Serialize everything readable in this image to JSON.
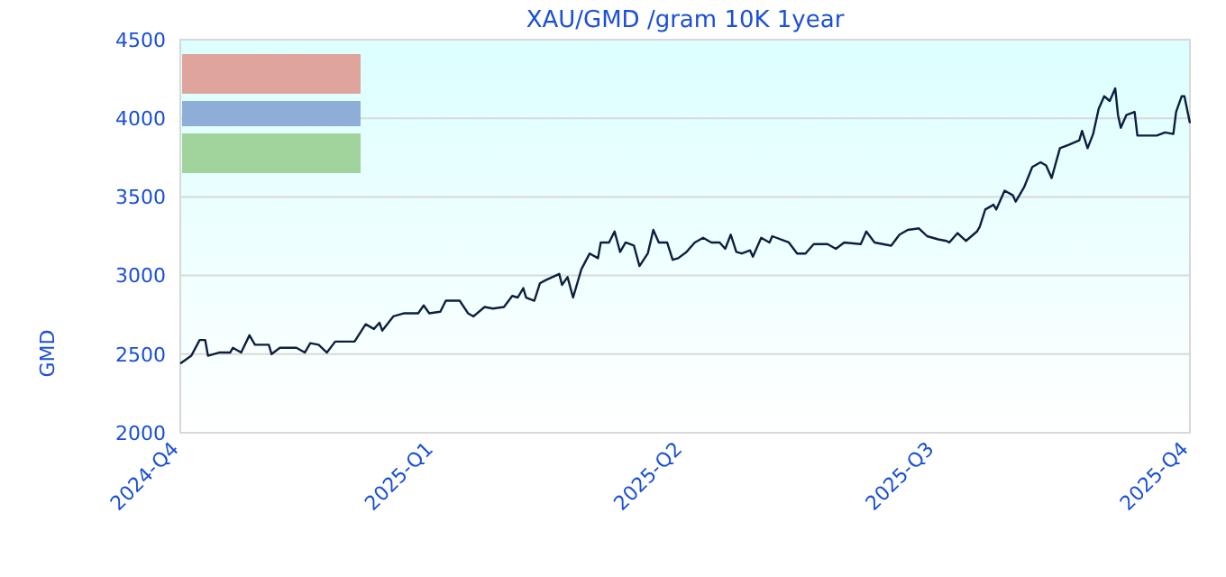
{
  "chart_data": {
    "type": "line",
    "title": "XAU/GMD /gram 10K 1year",
    "ylabel": "GMD",
    "x": [
      "2024-10-01",
      "2024-10-05",
      "2024-10-08",
      "2024-10-10",
      "2024-10-11",
      "2024-10-15",
      "2024-10-19",
      "2024-10-20",
      "2024-10-23",
      "2024-10-26",
      "2024-10-28",
      "2024-11-02",
      "2024-11-03",
      "2024-11-06",
      "2024-11-12",
      "2024-11-15",
      "2024-11-17",
      "2024-11-20",
      "2024-11-23",
      "2024-11-26",
      "2024-12-03",
      "2024-12-07",
      "2024-12-10",
      "2024-12-12",
      "2024-12-13",
      "2024-12-17",
      "2024-12-21",
      "2024-12-26",
      "2024-12-28",
      "2024-12-30",
      "2025-01-03",
      "2025-01-05",
      "2025-01-10",
      "2025-01-13",
      "2025-01-15",
      "2025-01-19",
      "2025-01-22",
      "2025-01-26",
      "2025-01-29",
      "2025-01-31",
      "2025-02-02",
      "2025-02-03",
      "2025-02-06",
      "2025-02-08",
      "2025-02-10",
      "2025-02-15",
      "2025-02-16",
      "2025-02-18",
      "2025-02-20",
      "2025-02-23",
      "2025-02-26",
      "2025-03-01",
      "2025-03-02",
      "2025-03-05",
      "2025-03-07",
      "2025-03-09",
      "2025-03-11",
      "2025-03-14",
      "2025-03-16",
      "2025-03-19",
      "2025-03-21",
      "2025-03-23",
      "2025-03-26",
      "2025-03-28",
      "2025-03-30",
      "2025-04-02",
      "2025-04-05",
      "2025-04-08",
      "2025-04-11",
      "2025-04-14",
      "2025-04-16",
      "2025-04-18",
      "2025-04-20",
      "2025-04-22",
      "2025-04-25",
      "2025-04-26",
      "2025-04-29",
      "2025-05-02",
      "2025-05-03",
      "2025-05-09",
      "2025-05-12",
      "2025-05-15",
      "2025-05-18",
      "2025-05-23",
      "2025-05-26",
      "2025-05-29",
      "2025-06-04",
      "2025-06-06",
      "2025-06-09",
      "2025-06-12",
      "2025-06-15",
      "2025-06-18",
      "2025-06-21",
      "2025-06-25",
      "2025-06-28",
      "2025-07-02",
      "2025-07-05",
      "2025-07-06",
      "2025-07-09",
      "2025-07-12",
      "2025-07-16",
      "2025-07-17",
      "2025-07-19",
      "2025-07-22",
      "2025-07-23",
      "2025-07-26",
      "2025-07-29",
      "2025-07-30",
      "2025-08-02",
      "2025-08-05",
      "2025-08-08",
      "2025-08-10",
      "2025-08-12",
      "2025-08-15",
      "2025-08-18",
      "2025-08-22",
      "2025-08-23",
      "2025-08-25",
      "2025-08-27",
      "2025-08-29",
      "2025-08-31",
      "2025-09-02",
      "2025-09-04",
      "2025-09-05",
      "2025-09-06",
      "2025-09-08",
      "2025-09-11",
      "2025-09-12",
      "2025-09-16",
      "2025-09-19",
      "2025-09-22",
      "2025-09-25",
      "2025-09-26",
      "2025-09-28",
      "2025-09-29",
      "2025-10-01"
    ],
    "series": [
      {
        "color": "#0d1f3f",
        "values": [
          2440,
          2490,
          2590,
          2590,
          2490,
          2510,
          2510,
          2540,
          2510,
          2620,
          2560,
          2560,
          2500,
          2540,
          2540,
          2510,
          2570,
          2560,
          2510,
          2580,
          2580,
          2690,
          2660,
          2700,
          2650,
          2740,
          2760,
          2760,
          2810,
          2760,
          2770,
          2840,
          2840,
          2760,
          2740,
          2800,
          2790,
          2800,
          2870,
          2860,
          2920,
          2860,
          2840,
          2950,
          2970,
          3010,
          2940,
          2990,
          2860,
          3040,
          3140,
          3110,
          3210,
          3210,
          3280,
          3150,
          3210,
          3190,
          3060,
          3140,
          3290,
          3210,
          3210,
          3100,
          3110,
          3150,
          3210,
          3240,
          3210,
          3210,
          3170,
          3260,
          3150,
          3140,
          3160,
          3120,
          3240,
          3210,
          3250,
          3210,
          3140,
          3140,
          3200,
          3200,
          3170,
          3210,
          3200,
          3280,
          3210,
          3200,
          3190,
          3260,
          3290,
          3300,
          3250,
          3230,
          3220,
          3210,
          3270,
          3220,
          3280,
          3310,
          3420,
          3450,
          3420,
          3540,
          3510,
          3470,
          3560,
          3690,
          3720,
          3700,
          3620,
          3810,
          3830,
          3860,
          3920,
          3810,
          3900,
          4060,
          4140,
          4110,
          4190,
          4020,
          3940,
          4020,
          4040,
          3890,
          3890,
          3890,
          3910,
          3900,
          4040,
          4140,
          4140,
          3970
        ]
      }
    ],
    "xlim": [
      "2024-10-01",
      "2025-10-01"
    ],
    "xticks": [
      {
        "value": "2024-10-01",
        "label": "2024-Q4"
      },
      {
        "value": "2025-01-01",
        "label": "2025-Q1"
      },
      {
        "value": "2025-04-01",
        "label": "2025-Q2"
      },
      {
        "value": "2025-07-01",
        "label": "2025-Q3"
      },
      {
        "value": "2025-10-01",
        "label": "2025-Q4"
      }
    ],
    "ylim": [
      2000,
      4500
    ],
    "yticks": [
      2000,
      2500,
      3000,
      3500,
      4000,
      4500
    ],
    "grid": "y"
  }
}
